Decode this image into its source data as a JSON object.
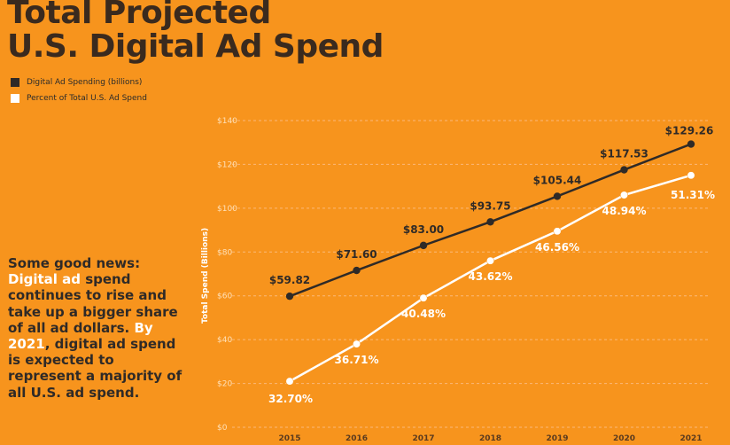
{
  "title_line1": "Total Projected",
  "title_line2": "U.S. Digital Ad Spend",
  "blurb": {
    "p1": "Some good news:",
    "p2_hl": "Digital ad",
    "p2_rest": " spend continues to rise and take up a bigger share of all ad dollars.",
    "p3_hl": " By 2021",
    "p3_rest": ", digital ad spend is expected to represent a majority of all U.S. ad spend."
  },
  "colors": {
    "background": "#f7941d",
    "dark_series": "#2f2a27",
    "light_series": "#ffffff",
    "grid": "#fbb97a"
  },
  "chart_data": {
    "type": "line",
    "title": "Total Projected U.S. Digital Ad Spend",
    "xlabel": "",
    "ylabel": "Total Spend (Billions)",
    "x": [
      "2015",
      "2016",
      "2017",
      "2018",
      "2019",
      "2020",
      "2021"
    ],
    "ylim": [
      0,
      140
    ],
    "yticks": [
      "$0",
      "$20",
      "$40",
      "$60",
      "$80",
      "$100",
      "$120",
      "$140"
    ],
    "grid": true,
    "legend_position": "top-left",
    "series": [
      {
        "name": "Digital Ad Spending (billions)",
        "color": "#2f2a27",
        "values": [
          59.82,
          71.6,
          83.0,
          93.75,
          105.44,
          117.53,
          129.26
        ],
        "labels": [
          "$59.82",
          "$71.60",
          "$83.00",
          "$93.75",
          "$105.44",
          "$117.53",
          "$129.26"
        ]
      },
      {
        "name": "Percent of Total U.S. Ad Spend",
        "color": "#ffffff",
        "values": [
          21,
          38,
          59,
          76,
          89.5,
          106,
          115
        ],
        "labels": [
          "32.70%",
          "36.71%",
          "40.48%",
          "43.62%",
          "46.56%",
          "48.94%",
          "51.31%"
        ]
      }
    ]
  }
}
